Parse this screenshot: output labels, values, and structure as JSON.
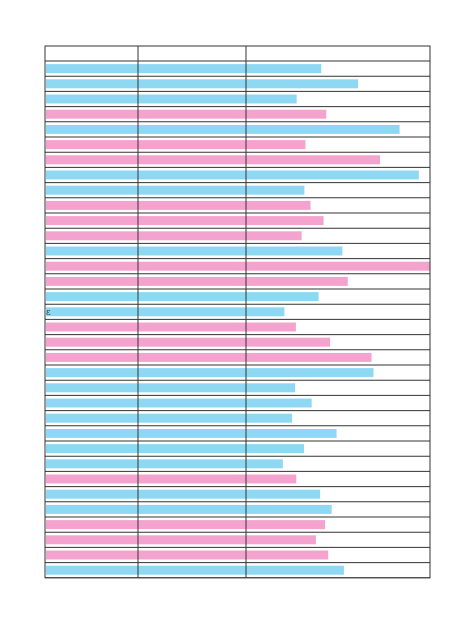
{
  "palette": {
    "blue": "#8fd8f4",
    "pink": "#f4a3cf",
    "grid": "#333333"
  },
  "chart_data": {
    "type": "bar",
    "orientation": "horizontal",
    "title": "",
    "xlabel": "",
    "ylabel": "",
    "grid": true,
    "columns": 3,
    "row_mark": "ɛ",
    "row_mark_index": 16,
    "bars": [
      {
        "value": 0.196,
        "color": "blue"
      },
      {
        "value": 0.292,
        "color": "blue"
      },
      {
        "value": 0.132,
        "color": "blue"
      },
      {
        "value": 0.209,
        "color": "pink"
      },
      {
        "value": 0.4,
        "color": "blue"
      },
      {
        "value": 0.155,
        "color": "pink"
      },
      {
        "value": 0.349,
        "color": "pink"
      },
      {
        "value": 0.45,
        "color": "blue"
      },
      {
        "value": 0.152,
        "color": "blue"
      },
      {
        "value": 0.168,
        "color": "pink"
      },
      {
        "value": 0.202,
        "color": "pink"
      },
      {
        "value": 0.145,
        "color": "pink"
      },
      {
        "value": 0.251,
        "color": "blue"
      },
      {
        "value": 0.926,
        "color": "pink"
      },
      {
        "value": 0.265,
        "color": "pink"
      },
      {
        "value": 0.189,
        "color": "blue"
      },
      {
        "value": 0.1,
        "color": "blue"
      },
      {
        "value": 0.13,
        "color": "pink"
      },
      {
        "value": 0.219,
        "color": "pink"
      },
      {
        "value": 0.327,
        "color": "pink"
      },
      {
        "value": 0.332,
        "color": "blue"
      },
      {
        "value": 0.128,
        "color": "blue"
      },
      {
        "value": 0.171,
        "color": "blue"
      },
      {
        "value": 0.12,
        "color": "blue"
      },
      {
        "value": 0.236,
        "color": "blue"
      },
      {
        "value": 0.151,
        "color": "blue"
      },
      {
        "value": 0.096,
        "color": "blue"
      },
      {
        "value": 0.131,
        "color": "pink"
      },
      {
        "value": 0.193,
        "color": "blue"
      },
      {
        "value": 0.223,
        "color": "blue"
      },
      {
        "value": 0.206,
        "color": "pink"
      },
      {
        "value": 0.182,
        "color": "pink"
      },
      {
        "value": 0.214,
        "color": "pink"
      },
      {
        "value": 0.255,
        "color": "blue"
      }
    ]
  }
}
